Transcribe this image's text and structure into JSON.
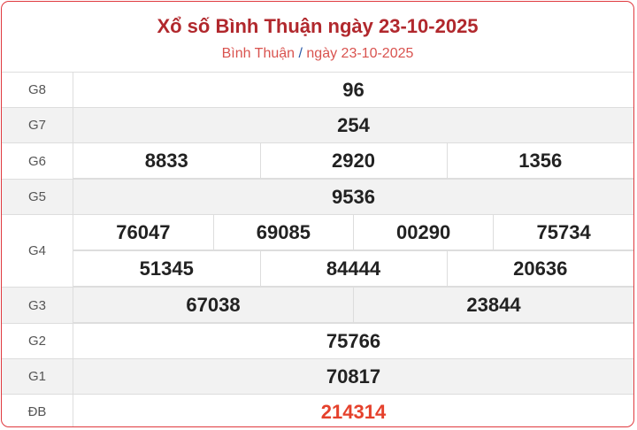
{
  "header": {
    "title": "Xổ số Bình Thuận ngày 23-10-2025",
    "breadcrumb": {
      "province": "Bình Thuận",
      "separator": "/",
      "date": "ngày 23-10-2025"
    }
  },
  "prizes": [
    {
      "label": "G8",
      "numbers": [
        "96"
      ]
    },
    {
      "label": "G7",
      "numbers": [
        "254"
      ]
    },
    {
      "label": "G6",
      "numbers": [
        "8833",
        "2920",
        "1356"
      ]
    },
    {
      "label": "G5",
      "numbers": [
        "9536"
      ]
    },
    {
      "label": "G4",
      "rows": [
        [
          "76047",
          "69085",
          "00290",
          "75734"
        ],
        [
          "51345",
          "84444",
          "20636"
        ]
      ]
    },
    {
      "label": "G3",
      "numbers": [
        "67038",
        "23844"
      ]
    },
    {
      "label": "G2",
      "numbers": [
        "75766"
      ]
    },
    {
      "label": "G1",
      "numbers": [
        "70817"
      ]
    },
    {
      "label": "ĐB",
      "numbers": [
        "214314"
      ]
    }
  ],
  "colors": {
    "title": "#b1282d",
    "special": "#e5412c",
    "border": "#e0393e",
    "link_separator": "#2a5aa8"
  }
}
